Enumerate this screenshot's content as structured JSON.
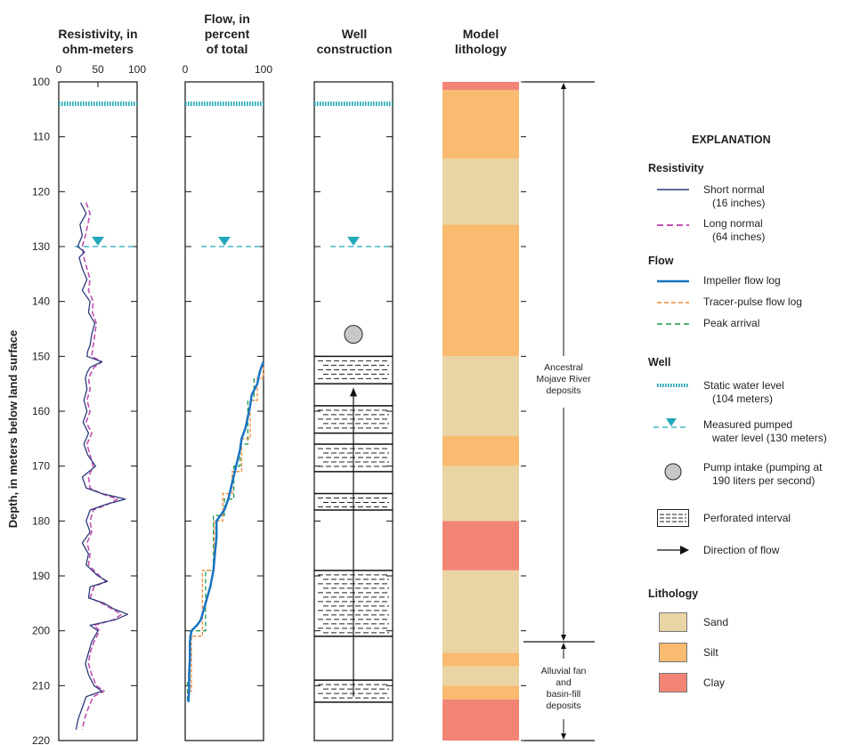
{
  "headers": {
    "resistivity": [
      "Resistivity, in",
      "ohm-meters"
    ],
    "flow": [
      "Flow, in",
      "percent",
      "of total"
    ],
    "well": [
      "Well",
      "construction"
    ],
    "lithology": [
      "Model",
      "lithology"
    ]
  },
  "y_axis": {
    "label": "Depth, in meters below land surface",
    "ticks": [
      "100",
      "110",
      "120",
      "130",
      "140",
      "150",
      "160",
      "170",
      "180",
      "190",
      "200",
      "210",
      "220"
    ]
  },
  "resistivity_ticks": [
    "0",
    "50",
    "100"
  ],
  "flow_ticks": [
    "0",
    "100"
  ],
  "annotations": {
    "ancestral": [
      "Ancestral",
      "Mojave River",
      "deposits"
    ],
    "alluvial": [
      "Alluvial fan",
      "and",
      "basin-fill",
      "deposits"
    ]
  },
  "legend": {
    "title": "EXPLANATION",
    "resistivity_title": "Resistivity",
    "short_normal": [
      "Short normal",
      "(16 inches)"
    ],
    "long_normal": [
      "Long normal",
      "(64 inches)"
    ],
    "flow_title": "Flow",
    "impeller": "Impeller flow log",
    "tracer": "Tracer-pulse flow log",
    "peak": "Peak arrival",
    "well_title": "Well",
    "static": [
      "Static water level",
      "(104 meters)"
    ],
    "pumped": [
      "Measured pumped",
      "water level (130 meters)"
    ],
    "intake": [
      "Pump intake (pumping at",
      "190 liters per second)"
    ],
    "perforated": "Perforated interval",
    "direction": "Direction of flow",
    "lithology_title": "Lithology",
    "sand": "Sand",
    "silt": "Silt",
    "clay": "Clay"
  },
  "colors": {
    "sand": "#e8d5a3",
    "silt": "#f8bb6f",
    "clay": "#f28476",
    "short_normal": "#2e3a7a",
    "long_normal": "#c050b0",
    "impeller": "#1a73c2",
    "tracer": "#f08a3c",
    "peak": "#1f9a4a",
    "water": "#22a8b8"
  },
  "chart_data": {
    "type": "line",
    "depth_range": [
      100,
      220
    ],
    "static_water_level": 104,
    "pumped_water_level": 130,
    "pump_intake_depth": 146,
    "resistivity": {
      "xlim": [
        0,
        100
      ],
      "short_normal": {
        "depth": [
          122,
          124,
          126,
          128,
          130,
          131,
          132,
          134,
          136,
          138,
          140,
          142,
          144,
          146,
          148,
          149,
          150,
          151,
          152,
          153,
          154,
          156,
          158,
          160,
          162,
          164,
          166,
          168,
          170,
          172,
          174,
          175,
          176,
          177,
          178,
          180,
          182,
          184,
          186,
          188,
          190,
          191,
          192,
          194,
          195,
          196,
          197,
          198,
          199,
          200,
          202,
          204,
          206,
          208,
          210,
          211,
          212,
          214,
          216,
          218
        ],
        "values": [
          28,
          35,
          27,
          30,
          24,
          33,
          26,
          30,
          36,
          30,
          40,
          38,
          46,
          42,
          40,
          37,
          36,
          55,
          40,
          36,
          34,
          36,
          32,
          36,
          31,
          38,
          32,
          37,
          47,
          30,
          35,
          55,
          85,
          60,
          40,
          35,
          40,
          30,
          38,
          35,
          50,
          62,
          40,
          38,
          58,
          70,
          88,
          72,
          40,
          50,
          42,
          38,
          34,
          38,
          45,
          55,
          35,
          30,
          25,
          22
        ]
      },
      "long_normal": {
        "depth": [
          122,
          124,
          126,
          128,
          130,
          132,
          134,
          136,
          138,
          140,
          142,
          144,
          146,
          148,
          150,
          151,
          152,
          154,
          156,
          158,
          160,
          162,
          164,
          166,
          168,
          170,
          172,
          174,
          175,
          176,
          177,
          178,
          180,
          182,
          184,
          186,
          188,
          190,
          191,
          192,
          194,
          195,
          196,
          197,
          198,
          199,
          200,
          202,
          204,
          206,
          208,
          210,
          211,
          212,
          214,
          216,
          218
        ],
        "values": [
          35,
          40,
          37,
          34,
          30,
          32,
          36,
          40,
          38,
          44,
          43,
          48,
          46,
          44,
          42,
          55,
          45,
          38,
          40,
          36,
          40,
          35,
          42,
          36,
          40,
          44,
          38,
          40,
          54,
          75,
          62,
          44,
          40,
          42,
          36,
          40,
          38,
          52,
          60,
          45,
          40,
          55,
          68,
          80,
          70,
          45,
          52,
          45,
          40,
          38,
          42,
          48,
          58,
          44,
          38,
          33,
          30
        ]
      }
    },
    "flow": {
      "xlim": [
        0,
        100
      ],
      "impeller": {
        "depth": [
          151,
          152,
          153,
          155,
          157,
          159,
          161,
          163,
          165,
          167,
          170,
          173,
          176,
          178,
          180,
          183,
          186,
          189,
          192,
          194,
          196,
          198,
          199,
          200,
          202,
          205,
          208,
          211,
          213
        ],
        "values": [
          100,
          97,
          95,
          92,
          85,
          83,
          80,
          77,
          72,
          70,
          65,
          60,
          55,
          50,
          40,
          40,
          38,
          36,
          32,
          28,
          24,
          20,
          15,
          8,
          6,
          6,
          5,
          5,
          4
        ]
      },
      "tracer": {
        "depth": [
          151,
          154,
          154,
          158,
          158,
          165,
          165,
          171,
          171,
          175,
          175,
          180,
          180,
          189,
          189,
          201,
          201,
          211,
          211,
          213
        ],
        "values": [
          100,
          100,
          92,
          92,
          83,
          83,
          72,
          72,
          60,
          60,
          48,
          48,
          37,
          37,
          22,
          22,
          8,
          8,
          4,
          4
        ]
      },
      "peak": {
        "depth": [
          154,
          158,
          158,
          166,
          166,
          170,
          170,
          176,
          176,
          179,
          179,
          189,
          189,
          200,
          200,
          209,
          209,
          213
        ],
        "values": [
          88,
          88,
          80,
          80,
          70,
          70,
          62,
          62,
          50,
          50,
          36,
          36,
          26,
          26,
          6,
          6,
          3,
          3
        ]
      }
    },
    "perforated_intervals": [
      [
        150,
        155
      ],
      [
        159,
        164
      ],
      [
        166,
        171
      ],
      [
        175,
        178
      ],
      [
        189,
        201
      ],
      [
        209,
        213
      ]
    ],
    "flow_arrow_depths": [
      212,
      156
    ],
    "lithology": [
      {
        "top": 100,
        "bottom": 101.5,
        "type": "clay"
      },
      {
        "top": 101.5,
        "bottom": 114,
        "type": "silt"
      },
      {
        "top": 114,
        "bottom": 126,
        "type": "sand"
      },
      {
        "top": 126,
        "bottom": 150,
        "type": "silt"
      },
      {
        "top": 150,
        "bottom": 164.5,
        "type": "sand"
      },
      {
        "top": 164.5,
        "bottom": 170,
        "type": "silt"
      },
      {
        "top": 170,
        "bottom": 180,
        "type": "sand"
      },
      {
        "top": 180,
        "bottom": 189,
        "type": "clay"
      },
      {
        "top": 189,
        "bottom": 204,
        "type": "sand"
      },
      {
        "top": 204,
        "bottom": 206.5,
        "type": "silt"
      },
      {
        "top": 206.5,
        "bottom": 210,
        "type": "sand"
      },
      {
        "top": 210,
        "bottom": 212.5,
        "type": "silt"
      },
      {
        "top": 212.5,
        "bottom": 220,
        "type": "clay"
      }
    ],
    "unit_boundaries": {
      "ancestral": [
        100,
        202
      ],
      "alluvial": [
        202,
        220
      ]
    }
  }
}
